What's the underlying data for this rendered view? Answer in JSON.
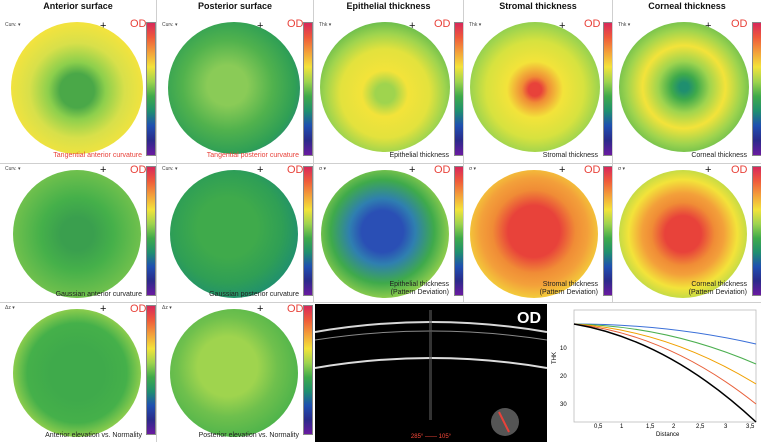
{
  "indicator": "OD",
  "plus": "+",
  "columns": {
    "anterior_surface": "Anterior surface",
    "posterior_surface": "Posterior surface",
    "epithelial_thickness": "Epithelial thickness",
    "stromal_thickness": "Stromal thickness",
    "corneal_thickness": "Corneal thickness"
  },
  "map_type_labels": {
    "curv": "Curv. ▾",
    "thk": "Thk ▾",
    "delta": "Δz ▾",
    "sigma": "σ ▾"
  },
  "maps": {
    "tangential_anterior": "Tangential anterior curvature",
    "tangential_posterior": "Tangential posterior curvature",
    "epithelial": "Epithelial thickness",
    "stromal": "Stromal thickness",
    "corneal": "Corneal thickness",
    "gaussian_anterior": "Gaussian anterior curvature",
    "gaussian_posterior": "Gaussian posterior curvature",
    "epithelial_pd": [
      "Epithelial thickness",
      "(Pattern Deviation)"
    ],
    "stromal_pd": [
      "Stromal thickness",
      "(Pattern Deviation)"
    ],
    "corneal_pd": [
      "Corneal thickness",
      "(Pattern Deviation)"
    ],
    "anterior_elevation": "Anterior elevation vs. Normality",
    "posterior_elevation": "Posterior elevation vs. Normality"
  },
  "oct": {
    "label": "OD",
    "axis": "285° —— 105°"
  },
  "graph": {
    "xlabel": "Distance",
    "ylabel": "THK",
    "x_ticks": [
      "0,5",
      "1",
      "1,5",
      "2",
      "2,5",
      "3",
      "3,5"
    ],
    "y_ticks": [
      "10",
      "20",
      "30"
    ],
    "series_colors": [
      "#000000",
      "#e8603a",
      "#f0a000",
      "#4caf50",
      "#3a6fd8",
      "#7a3aa0"
    ]
  },
  "colors": {
    "red": "#e8423a",
    "yellow": "#f3e33a",
    "green": "#45b04a",
    "blue": "#1f4fb0"
  }
}
